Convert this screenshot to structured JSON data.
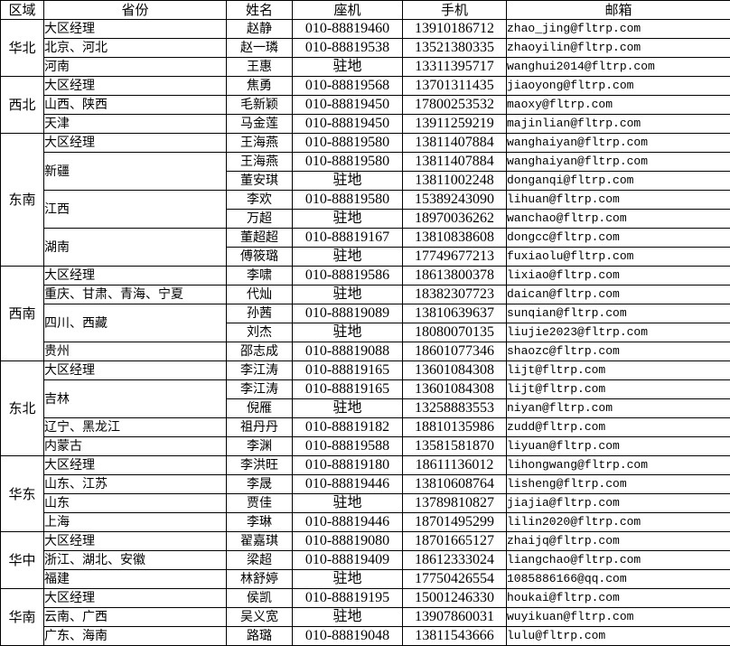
{
  "table": {
    "headers": [
      "区域",
      "省份",
      "姓名",
      "座机",
      "手机",
      "邮箱"
    ],
    "sections": [
      {
        "region": "华北",
        "rows": [
          {
            "province": "大区经理",
            "province_span": 1,
            "name": "赵静",
            "landline": "010-88819460",
            "mobile": "13910186712",
            "email": "zhao_jing@fltrp.com"
          },
          {
            "province": "北京、河北",
            "province_span": 1,
            "name": "赵一璘",
            "landline": "010-88819538",
            "mobile": "13521380335",
            "email": "zhaoyilin@fltrp.com"
          },
          {
            "province": "河南",
            "province_span": 1,
            "name": "王惠",
            "landline": "驻地",
            "mobile": "13311395717",
            "email": "wanghui2014@fltrp.com"
          }
        ]
      },
      {
        "region": "西北",
        "rows": [
          {
            "province": "大区经理",
            "province_span": 1,
            "name": "焦勇",
            "landline": "010-88819568",
            "mobile": "13701311435",
            "email": "jiaoyong@fltrp.com"
          },
          {
            "province": "山西、陕西",
            "province_span": 1,
            "name": "毛新颖",
            "landline": "010-88819450",
            "mobile": "17800253532",
            "email": "maoxy@fltrp.com"
          },
          {
            "province": "天津",
            "province_span": 1,
            "name": "马金莲",
            "landline": "010-88819450",
            "mobile": "13911259219",
            "email": "majinlian@fltrp.com"
          }
        ]
      },
      {
        "region": "东南",
        "rows": [
          {
            "province": "大区经理",
            "province_span": 1,
            "name": "王海燕",
            "landline": "010-88819580",
            "mobile": "13811407884",
            "email": "wanghaiyan@fltrp.com"
          },
          {
            "province": "新疆",
            "province_span": 2,
            "name": "王海燕",
            "landline": "010-88819580",
            "mobile": "13811407884",
            "email": "wanghaiyan@fltrp.com"
          },
          {
            "name": "董安琪",
            "landline": "驻地",
            "mobile": "13811002248",
            "email": "donganqi@fltrp.com"
          },
          {
            "province": "江西",
            "province_span": 2,
            "name": "李欢",
            "landline": "010-88819580",
            "mobile": "15389243090",
            "email": "lihuan@fltrp.com"
          },
          {
            "name": "万超",
            "landline": "驻地",
            "mobile": "18970036262",
            "email": "wanchao@fltrp.com"
          },
          {
            "province": "湖南",
            "province_span": 2,
            "name": "董超超",
            "landline": "010-88819167",
            "mobile": "13810838608",
            "email": "dongcc@fltrp.com"
          },
          {
            "name": "傅筱璐",
            "landline": "驻地",
            "mobile": "17749677213",
            "email": "fuxiaolu@fltrp.com"
          }
        ]
      },
      {
        "region": "西南",
        "rows": [
          {
            "province": "大区经理",
            "province_span": 1,
            "name": "李啸",
            "landline": "010-88819586",
            "mobile": "18613800378",
            "email": "lixiao@fltrp.com"
          },
          {
            "province": "重庆、甘肃、青海、宁夏",
            "province_span": 1,
            "name": "代灿",
            "landline": "驻地",
            "mobile": "18382307723",
            "email": "daican@fltrp.com"
          },
          {
            "province": "四川、西藏",
            "province_span": 2,
            "name": "孙茜",
            "landline": "010-88819089",
            "mobile": "13810639637",
            "email": "sunqian@fltrp.com"
          },
          {
            "name": "刘杰",
            "landline": "驻地",
            "mobile": "18080070135",
            "email": "liujie2023@fltrp.com"
          },
          {
            "province": "贵州",
            "province_span": 1,
            "name": "邵志成",
            "landline": "010-88819088",
            "mobile": "18601077346",
            "email": "shaozc@fltrp.com"
          }
        ]
      },
      {
        "region": "东北",
        "rows": [
          {
            "province": "大区经理",
            "province_span": 1,
            "name": "李江涛",
            "landline": "010-88819165",
            "mobile": "13601084308",
            "email": "lijt@fltrp.com"
          },
          {
            "province": "吉林",
            "province_span": 2,
            "name": "李江涛",
            "landline": "010-88819165",
            "mobile": "13601084308",
            "email": "lijt@fltrp.com"
          },
          {
            "name": "倪雁",
            "landline": "驻地",
            "mobile": "13258883553",
            "email": "niyan@fltrp.com"
          },
          {
            "province": "辽宁、黑龙江",
            "province_span": 1,
            "name": "祖丹丹",
            "landline": "010-88819182",
            "mobile": "18810135986",
            "email": "zudd@fltrp.com"
          },
          {
            "province": "内蒙古",
            "province_span": 1,
            "name": "李渊",
            "landline": "010-88819588",
            "mobile": "13581581870",
            "email": "liyuan@fltrp.com"
          }
        ]
      },
      {
        "region": "华东",
        "rows": [
          {
            "province": "大区经理",
            "province_span": 1,
            "name": "李洪旺",
            "landline": "010-88819180",
            "mobile": "18611136012",
            "email": "lihongwang@fltrp.com"
          },
          {
            "province": "山东、江苏",
            "province_span": 1,
            "name": "李晟",
            "landline": "010-88819446",
            "mobile": "13810608764",
            "email": "lisheng@fltrp.com"
          },
          {
            "province": "山东",
            "province_span": 1,
            "name": "贾佳",
            "landline": "驻地",
            "mobile": "13789810827",
            "email": "jiajia@fltrp.com"
          },
          {
            "province": "上海",
            "province_span": 1,
            "name": "李琳",
            "landline": "010-88819446",
            "mobile": "18701495299",
            "email": "lilin2020@fltrp.com"
          }
        ]
      },
      {
        "region": "华中",
        "rows": [
          {
            "province": "大区经理",
            "province_span": 1,
            "name": "翟嘉琪",
            "landline": "010-88819080",
            "mobile": "18701665127",
            "email": "zhaijq@fltrp.com"
          },
          {
            "province": "浙江、湖北、安徽",
            "province_span": 1,
            "name": "梁超",
            "landline": "010-88819409",
            "mobile": "18612333024",
            "email": "liangchao@fltrp.com"
          },
          {
            "province": "福建",
            "province_span": 1,
            "name": "林舒婷",
            "landline": "驻地",
            "mobile": "17750426554",
            "email": "1085886166@qq.com"
          }
        ]
      },
      {
        "region": "华南",
        "rows": [
          {
            "province": "大区经理",
            "province_span": 1,
            "name": "侯凯",
            "landline": "010-88819195",
            "mobile": "15001246330",
            "email": "houkai@fltrp.com"
          },
          {
            "province": "云南、广西",
            "province_span": 1,
            "name": "吴义宽",
            "landline": "驻地",
            "mobile": "13907860031",
            "email": "wuyikuan@fltrp.com"
          },
          {
            "province": "广东、海南",
            "province_span": 1,
            "name": "路璐",
            "landline": "010-88819048",
            "mobile": "13811543666",
            "email": "lulu@fltrp.com"
          }
        ]
      }
    ]
  },
  "colors": {
    "border": "#000000",
    "text": "#000000",
    "background": "#ffffff"
  }
}
